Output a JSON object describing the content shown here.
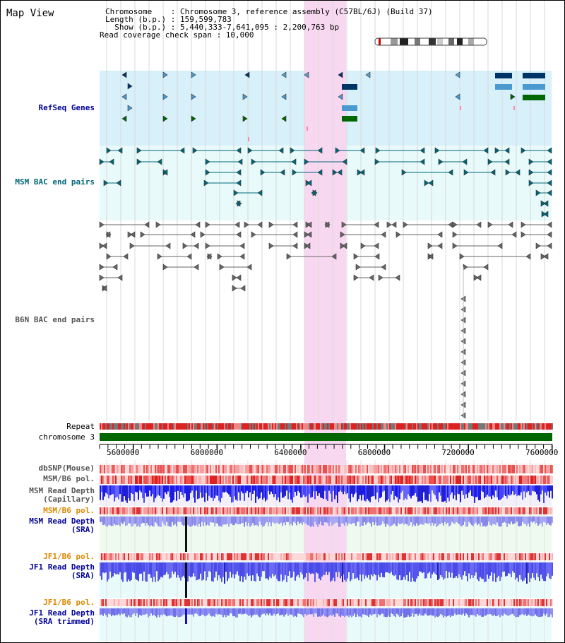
{
  "header": {
    "title": "Map View",
    "chromosome_line": "Chromosome    : Chromosome 3, reference assembly (C57BL/6J) (Build 37)",
    "length_line": "Length (b.p.) : 159,599,783",
    "show_line": "  Show (b.p.) : 5,440,333-7,641,095 : 2,200,763 bp",
    "coverage_line": "Read coverage check span : 10,000"
  },
  "tracks": {
    "refseq": "RefSeq Genes",
    "msm_bac": "MSM BAC end pairs",
    "b6n_bac": "B6N BAC end pairs",
    "repeat": "Repeat",
    "chromosome": "chromosome 3",
    "dbsnp": "dbSNP(Mouse)",
    "msm_pol1": "MSM/B6 pol.",
    "msm_depth_cap_1": "MSM Read Depth",
    "msm_depth_cap_2": "(Capillary)",
    "msm_pol2": "MSM/B6 pol.",
    "msm_depth_sra_1": "MSM Read Depth",
    "msm_depth_sra_2": "(SRA)",
    "jf1_pol1": "JF1/B6 pol.",
    "jf1_depth_sra_1": "JF1 Read Depth",
    "jf1_depth_sra_2": "(SRA)",
    "jf1_pol2": "JF1/B6 pol.",
    "jf1_depth_trim_1": "JF1 Read Depth",
    "jf1_depth_trim_2": "(SRA trimmed)"
  },
  "axis": {
    "ticks": [
      "5600000",
      "6000000",
      "6400000",
      "6800000",
      "7200000",
      "7600000"
    ]
  },
  "colors": {
    "refseq_bg": "#d8f0fa",
    "bac_bg": "#e8fafa",
    "highlight": "#f8d8f0",
    "chromosome_bar": "#006600",
    "label_navy": "#000099",
    "label_teal": "#006677",
    "label_gray": "#555555",
    "label_orange": "#dd8800"
  }
}
